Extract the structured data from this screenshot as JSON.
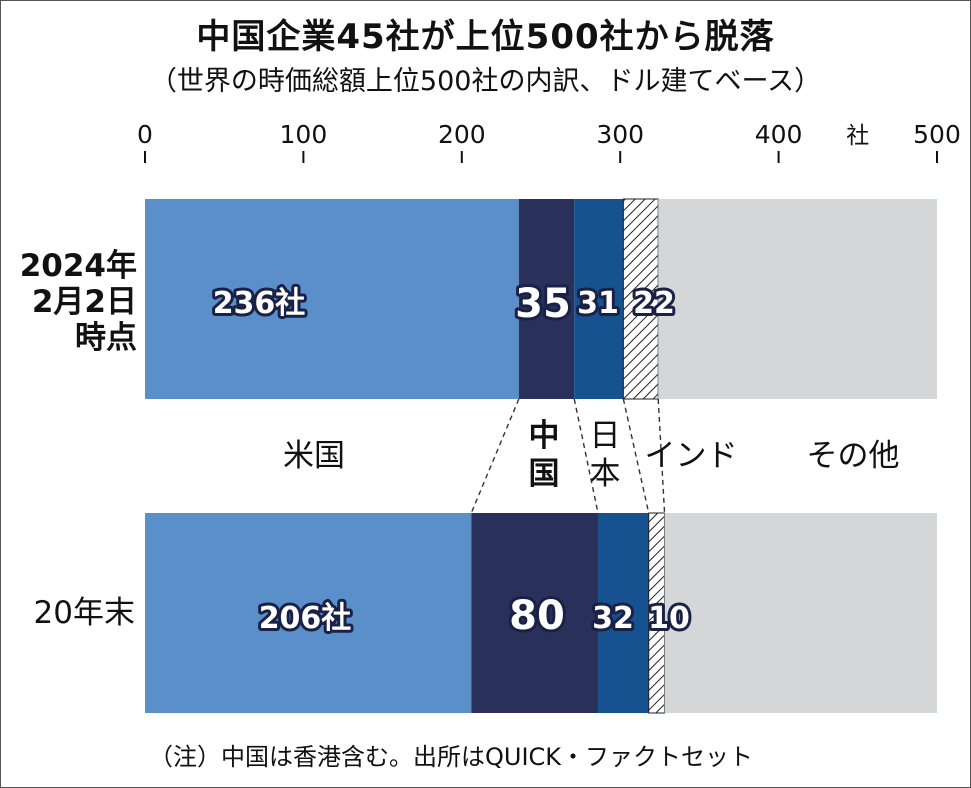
{
  "title": "中国企業45社が上位500社から脱落",
  "subtitle": "（世界の時価総額上位500社の内訳、ドル建てベース）",
  "note": "（注）中国は香港含む。出所はQUICK・ファクトセット",
  "colors": {
    "usa": "#5b8fc9",
    "china": "#293059",
    "japan": "#16528f",
    "india": "hatched",
    "other": "#d4d6d8"
  },
  "chart_data": {
    "type": "bar",
    "orientation": "horizontal",
    "stacked": true,
    "title": "中国企業45社が上位500社から脱落",
    "subtitle": "（世界の時価総額上位500社の内訳、ドル建てベース）",
    "xlim": [
      0,
      500
    ],
    "xticks": [
      "0",
      "100",
      "200",
      "300",
      "400",
      "500"
    ],
    "xunit": "社",
    "categories": [
      {
        "label_lines": [
          "2024年",
          "2月2日",
          "時点"
        ]
      },
      {
        "label_lines": [
          "20年末"
        ]
      }
    ],
    "series": [
      {
        "name": "米国",
        "label_lines": [
          "米国"
        ],
        "values": [
          236,
          206
        ],
        "value_labels": [
          "236社",
          "206社"
        ]
      },
      {
        "name": "中国",
        "label_lines": [
          "中",
          "国"
        ],
        "values": [
          35,
          80
        ],
        "value_labels": [
          "35",
          "80"
        ]
      },
      {
        "name": "日本",
        "label_lines": [
          "日",
          "本"
        ],
        "values": [
          31,
          32
        ],
        "value_labels": [
          "31",
          "32"
        ]
      },
      {
        "name": "インド",
        "label_lines": [
          "インド"
        ],
        "values": [
          22,
          10
        ],
        "value_labels": [
          "22",
          "10"
        ]
      },
      {
        "name": "その他",
        "label_lines": [
          "その他"
        ],
        "values": [
          176,
          172
        ],
        "value_labels": [
          "",
          ""
        ]
      }
    ]
  }
}
